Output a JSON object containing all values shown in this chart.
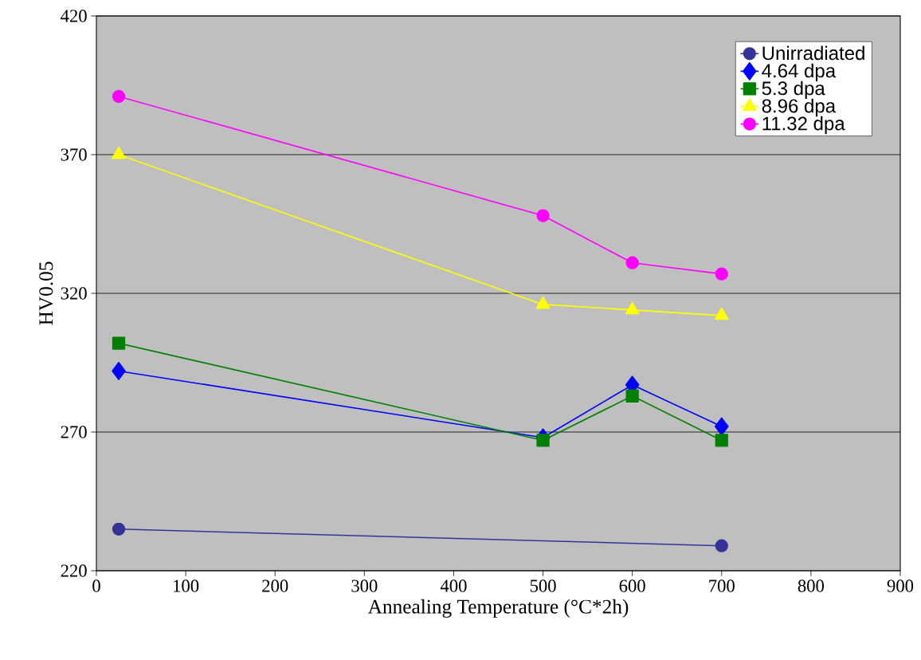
{
  "chart_data": {
    "type": "line",
    "xlabel": "Annealing Temperature (°C*2h)",
    "ylabel": "HV0.05",
    "xlim": [
      0,
      900
    ],
    "xticks": [
      0,
      100,
      200,
      300,
      400,
      500,
      600,
      700,
      800,
      900
    ],
    "ylim": [
      220,
      420
    ],
    "yticks": [
      220,
      270,
      320,
      370,
      420
    ],
    "grid": "y",
    "legend": "top right",
    "series": [
      {
        "name": "Unirradiated",
        "color": "#333399",
        "marker": "circle",
        "x": [
          25,
          700
        ],
        "values": [
          235,
          229
        ]
      },
      {
        "name": "4.64 dpa",
        "color": "#0000ff",
        "marker": "diamond",
        "x": [
          25,
          500,
          600,
          700
        ],
        "values": [
          292,
          268,
          287,
          272
        ]
      },
      {
        "name": "5.3 dpa",
        "color": "#008000",
        "marker": "square",
        "x": [
          25,
          500,
          600,
          700
        ],
        "values": [
          302,
          267,
          283,
          267
        ]
      },
      {
        "name": "8.96 dpa",
        "color": "#ffff00",
        "marker": "triangle",
        "x": [
          25,
          500,
          600,
          700
        ],
        "values": [
          370,
          316,
          314,
          312
        ]
      },
      {
        "name": "11.32 dpa",
        "color": "#ff00ff",
        "marker": "circle",
        "x": [
          25,
          500,
          600,
          700
        ],
        "values": [
          391,
          348,
          331,
          327
        ]
      }
    ]
  }
}
